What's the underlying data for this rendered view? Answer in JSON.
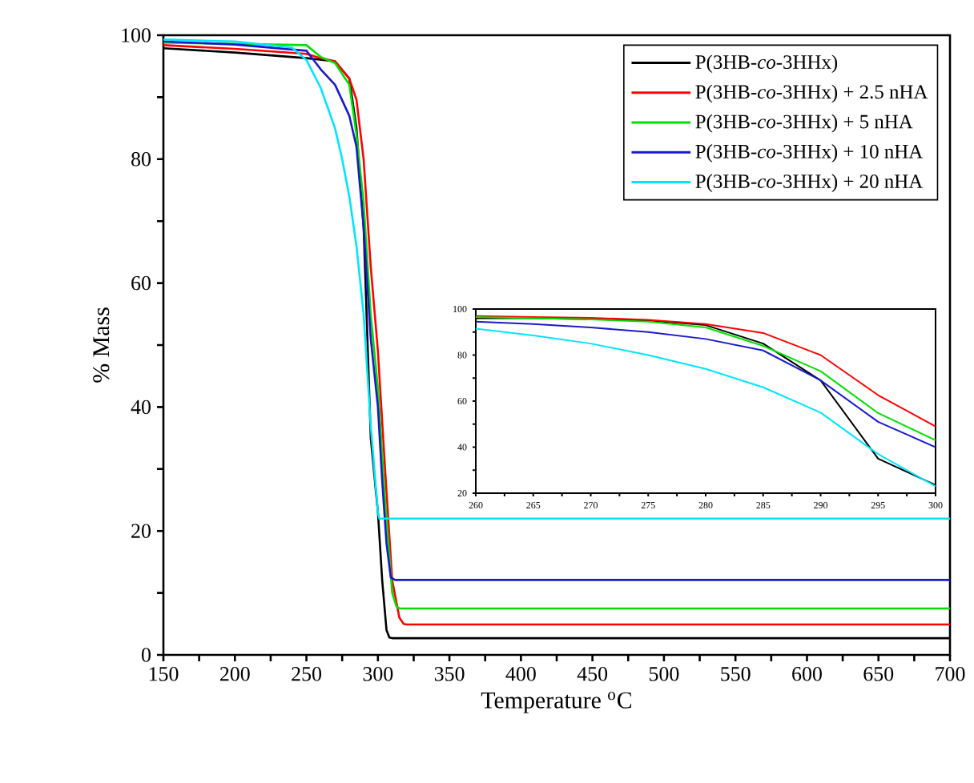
{
  "chart_data": [
    {
      "type": "line",
      "xlabel": "Temperature $^{o}$C",
      "ylabel": "% Mass",
      "legend": "top right",
      "xlim": [
        150,
        700
      ],
      "ylim": [
        0,
        100
      ],
      "xticks": [
        150,
        200,
        250,
        300,
        350,
        400,
        450,
        500,
        550,
        600,
        650,
        700
      ],
      "yticks": [
        0,
        20,
        40,
        60,
        80,
        100
      ],
      "series": [
        {
          "name": "P(3HB-*co*-3HHx)",
          "color": "#000000",
          "x": [
            150,
            200,
            250,
            270,
            280,
            285,
            290,
            295,
            300,
            303,
            306,
            308,
            310,
            400,
            500,
            600,
            700
          ],
          "values": [
            97.9,
            97.2,
            96.3,
            95.8,
            93,
            85,
            69,
            35,
            23,
            12,
            4,
            2.8,
            2.7,
            2.7,
            2.7,
            2.7,
            2.7
          ]
        },
        {
          "name": "P(3HB-*co*-3HHx) + 2.5 nHA",
          "color": "#ff0000",
          "x": [
            150,
            200,
            250,
            260,
            270,
            280,
            285,
            290,
            295,
            300,
            305,
            310,
            315,
            318,
            320,
            400,
            500,
            600,
            700
          ],
          "values": [
            98.4,
            97.8,
            97,
            96.3,
            95.8,
            93,
            89.6,
            80,
            62.6,
            49,
            30,
            12,
            6,
            5,
            4.9,
            4.9,
            4.9,
            4.9,
            4.9
          ]
        },
        {
          "name": "P(3HB-*co*-3HHx) + 5 nHA",
          "color": "#00e000",
          "x": [
            150,
            200,
            250,
            260,
            270,
            280,
            285,
            290,
            295,
            300,
            305,
            310,
            313,
            315,
            400,
            500,
            600,
            700
          ],
          "values": [
            98.8,
            98.6,
            98.4,
            96.5,
            95.5,
            92,
            84,
            73,
            54.8,
            43,
            25,
            10,
            7.8,
            7.5,
            7.5,
            7.5,
            7.5,
            7.5
          ]
        },
        {
          "name": "P(3HB-*co*-3HHx) + 10 nHA",
          "color": "#1a1acc",
          "x": [
            150,
            200,
            250,
            260,
            270,
            280,
            285,
            290,
            295,
            300,
            303,
            306,
            309,
            312,
            400,
            500,
            600,
            700
          ],
          "values": [
            99,
            98.5,
            97.5,
            94.5,
            92,
            87,
            82,
            69,
            51,
            40,
            28,
            18,
            12.5,
            12.1,
            12.1,
            12.1,
            12.1,
            12.1
          ]
        },
        {
          "name": "P(3HB-*co*-3HHx) + 20 nHA",
          "color": "#00e5ff",
          "x": [
            150,
            200,
            240,
            250,
            260,
            270,
            275,
            280,
            285,
            290,
            295,
            300,
            301,
            400,
            500,
            600,
            700
          ],
          "values": [
            99.3,
            99,
            98,
            96,
            91.5,
            85,
            80,
            74,
            66,
            55,
            37,
            23,
            22,
            22,
            22,
            22,
            22
          ]
        }
      ]
    },
    {
      "type": "line",
      "xlim": [
        260,
        300
      ],
      "ylim": [
        20,
        100
      ],
      "xticks": [
        260,
        265,
        270,
        275,
        280,
        285,
        290,
        295,
        300
      ],
      "yticks": [
        20,
        40,
        60,
        80,
        100
      ],
      "series": [
        {
          "color": "#000000",
          "x": [
            260,
            265,
            270,
            275,
            280,
            285,
            290,
            295,
            300
          ],
          "values": [
            96,
            96,
            95.6,
            95,
            93,
            85,
            69,
            35,
            23.5
          ]
        },
        {
          "color": "#ff0000",
          "x": [
            260,
            265,
            270,
            275,
            280,
            285,
            290,
            295,
            300
          ],
          "values": [
            97,
            96.5,
            96.2,
            95.3,
            93.5,
            89.6,
            80,
            62.6,
            49
          ]
        },
        {
          "color": "#00e000",
          "x": [
            260,
            265,
            270,
            275,
            280,
            285,
            290,
            295,
            300
          ],
          "values": [
            96.5,
            96,
            95.5,
            94.5,
            92,
            84,
            73,
            54.8,
            43
          ]
        },
        {
          "color": "#1a1acc",
          "x": [
            260,
            265,
            270,
            275,
            280,
            285,
            290,
            295,
            300
          ],
          "values": [
            94.5,
            93.5,
            92,
            90,
            87,
            82,
            69,
            51,
            40
          ]
        },
        {
          "color": "#00e5ff",
          "x": [
            260,
            265,
            270,
            275,
            280,
            285,
            290,
            295,
            300
          ],
          "values": [
            91.5,
            88.5,
            85,
            80,
            74,
            66,
            55,
            37,
            23
          ]
        }
      ]
    }
  ]
}
